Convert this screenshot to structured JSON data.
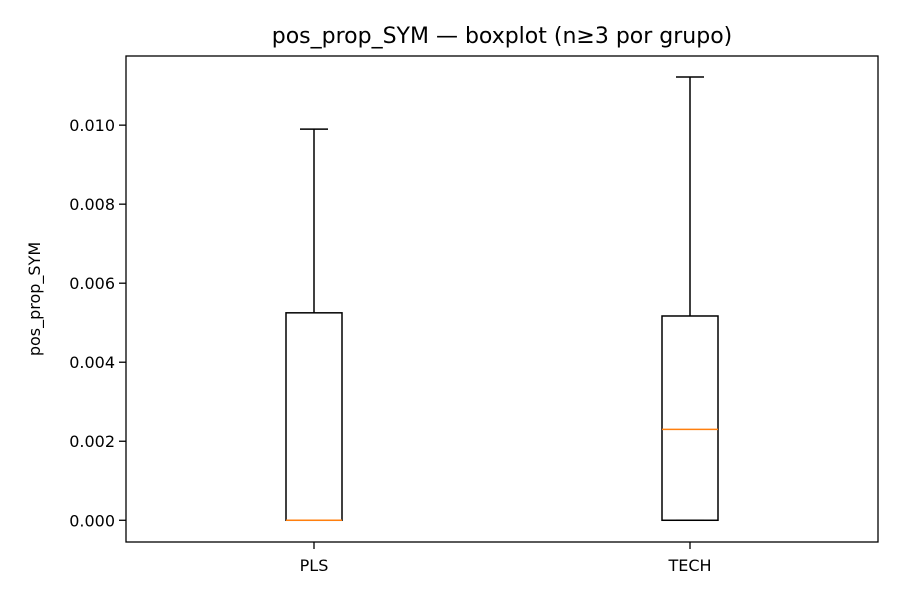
{
  "chart_data": {
    "type": "boxplot",
    "title": "pos_prop_SYM — boxplot (n≥3 por grupo)",
    "xlabel": "",
    "ylabel": "pos_prop_SYM",
    "ylim": [
      -0.00055,
      0.01175
    ],
    "yticks": [
      0.0,
      0.002,
      0.004,
      0.006,
      0.008,
      0.01
    ],
    "ytick_labels": [
      "0.000",
      "0.002",
      "0.004",
      "0.006",
      "0.008",
      "0.010"
    ],
    "categories": [
      "PLS",
      "TECH"
    ],
    "boxes": [
      {
        "category": "PLS",
        "whislo": 0.0,
        "q1": 0.0,
        "med": 0.0,
        "q3": 0.00525,
        "whishi": 0.0099
      },
      {
        "category": "TECH",
        "whislo": 0.0,
        "q1": 0.0,
        "med": 0.0023,
        "q3": 0.00517,
        "whishi": 0.01122
      }
    ],
    "grid": false,
    "colors": {
      "box": "#000000",
      "median": "#ff7f0e",
      "background": "#ffffff"
    }
  }
}
